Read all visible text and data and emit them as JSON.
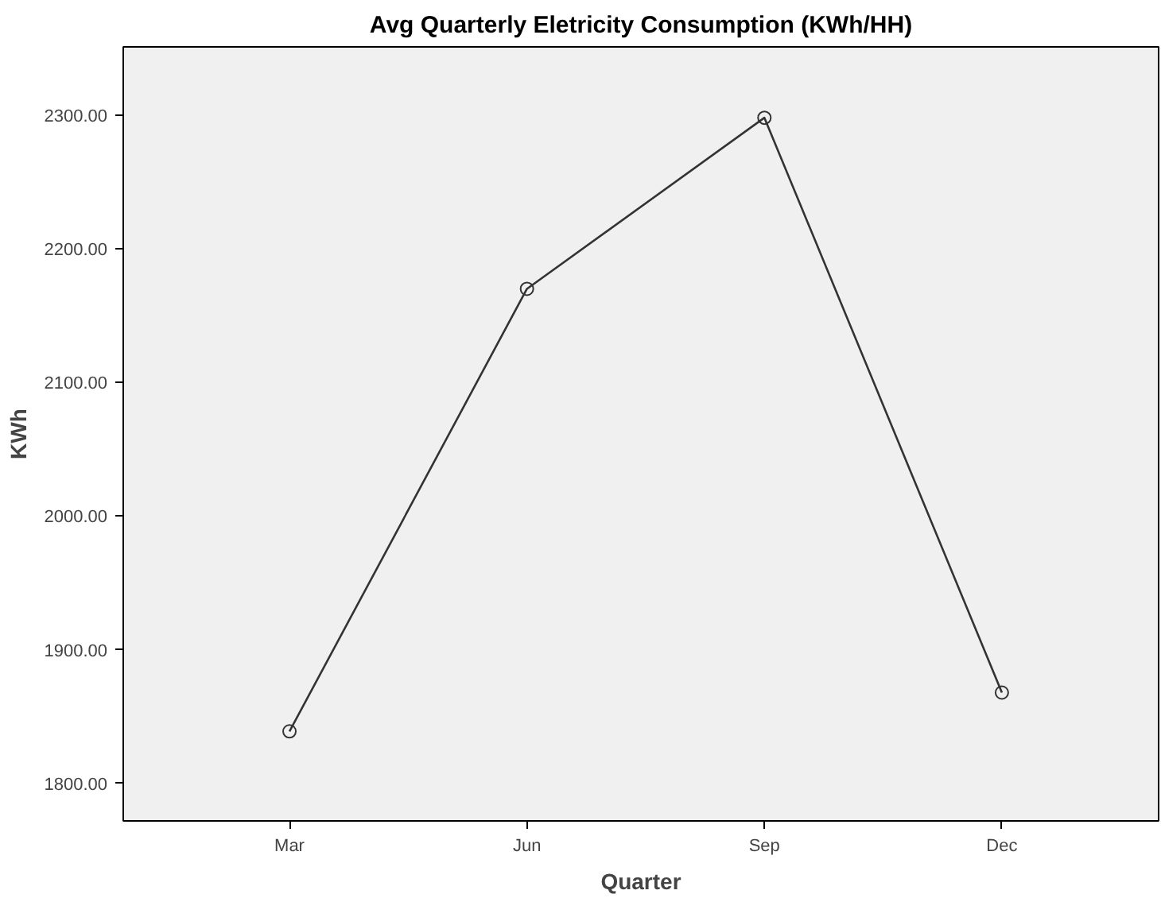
{
  "chart_data": {
    "type": "line",
    "title": "Avg Quarterly Eletricity Consumption (KWh/HH)",
    "xlabel": "Quarter",
    "ylabel": "KWh",
    "categories": [
      "Mar",
      "Jun",
      "Sep",
      "Dec"
    ],
    "series": [
      {
        "color": "#333333",
        "values": [
          1839,
          2170,
          2298,
          1868
        ]
      }
    ],
    "ylim": [
      1772,
      2351
    ],
    "yticks": [
      {
        "value": 1800,
        "label": "1800.00"
      },
      {
        "value": 1900,
        "label": "1900.00"
      },
      {
        "value": 2000,
        "label": "2000.00"
      },
      {
        "value": 2100,
        "label": "2100.00"
      },
      {
        "value": 2200,
        "label": "2200.00"
      },
      {
        "value": 2300,
        "label": "2300.00"
      }
    ],
    "grid": false,
    "marker": "circle",
    "line_style": "solid"
  }
}
